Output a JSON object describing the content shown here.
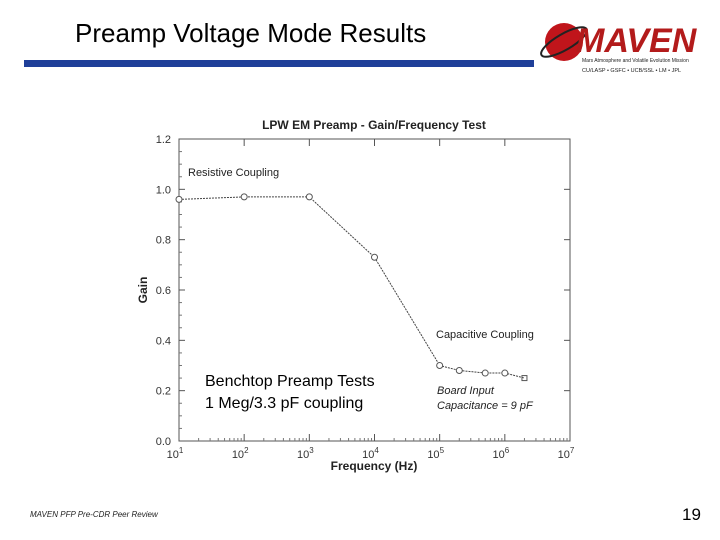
{
  "slide": {
    "title": "Preamp Voltage Mode Results",
    "footer": "MAVEN PFP Pre-CDR Peer Review",
    "page_number": "19"
  },
  "logo": {
    "wordmark": "MAVEN",
    "subtitle": "Mars Atmosphere and Volatile Evolution Mission",
    "partners": "CU/LASP • GSFC • UCB/SSL • LM • JPL",
    "colors": {
      "planet": "#c0151b",
      "wordmark": "#b31b1b",
      "ring": "#222222"
    }
  },
  "annotations": {
    "resistive": "Resistive Coupling",
    "capacitive": "Capacitive Coupling",
    "bench_line1": "Benchtop Preamp Tests",
    "bench_line2": "1 Meg/3.3 pF coupling",
    "board_line1": "Board Input",
    "board_line2": "Capacitance = 9 pF"
  },
  "chart_data": {
    "type": "line",
    "title": "LPW EM Preamp - Gain/Frequency Test",
    "xlabel": "Frequency (Hz)",
    "ylabel": "Gain",
    "x_scale": "log",
    "xlim": [
      10,
      10000000
    ],
    "ylim": [
      0,
      1.2
    ],
    "x_ticks": [
      {
        "value": 10,
        "base": "10",
        "exp": "1"
      },
      {
        "value": 100,
        "base": "10",
        "exp": "2"
      },
      {
        "value": 1000,
        "base": "10",
        "exp": "3"
      },
      {
        "value": 10000,
        "base": "10",
        "exp": "4"
      },
      {
        "value": 100000,
        "base": "10",
        "exp": "5"
      },
      {
        "value": 1000000,
        "base": "10",
        "exp": "6"
      },
      {
        "value": 10000000,
        "base": "10",
        "exp": "7"
      }
    ],
    "y_ticks": [
      "0.0",
      "0.2",
      "0.4",
      "0.6",
      "0.8",
      "1.0",
      "1.2"
    ],
    "grid": false,
    "series": [
      {
        "x": [
          10,
          100,
          1000,
          10000,
          100000,
          200000,
          500000,
          1000000,
          2000000
        ],
        "y": [
          0.96,
          0.97,
          0.97,
          0.73,
          0.3,
          0.28,
          0.27,
          0.27,
          0.25
        ]
      }
    ],
    "colors": {
      "line": "#444444",
      "marker": "#555555",
      "axis": "#555555"
    }
  }
}
